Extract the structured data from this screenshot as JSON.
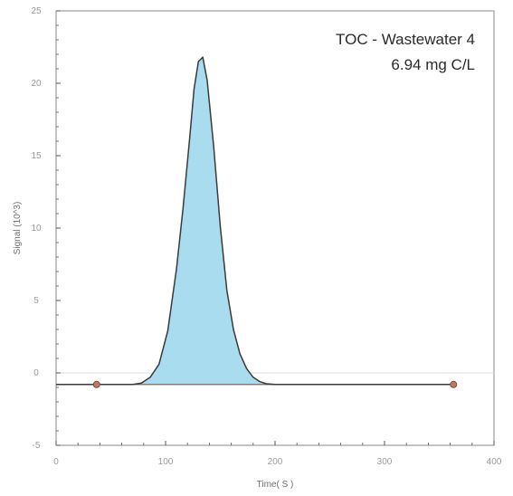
{
  "chart_data": {
    "type": "area",
    "title": "",
    "annotation": {
      "line1": "TOC - Wastewater 4",
      "line2": "6.94 mg C/L"
    },
    "xlabel": "Time( S )",
    "ylabel": "Signal (10^3)",
    "xlim": [
      0,
      400
    ],
    "ylim": [
      -5,
      25
    ],
    "x_ticks": [
      0,
      100,
      200,
      300,
      400
    ],
    "x_tick_labels": [
      "0",
      "100",
      "200",
      "300",
      "400"
    ],
    "y_ticks": [
      -5,
      0,
      5,
      10,
      15,
      20,
      25
    ],
    "y_tick_labels": [
      "-5",
      "0",
      "5",
      "10",
      "15",
      "20",
      "25"
    ],
    "grid": false,
    "reference_line_y": 0,
    "baseline": -0.8,
    "series": [
      {
        "x": [
          0,
          40,
          70,
          78,
          86,
          94,
          102,
          110,
          116,
          122,
          126,
          130,
          134,
          138,
          144,
          150,
          156,
          162,
          168,
          174,
          180,
          186,
          192,
          200,
          260,
          360
        ],
        "y": [
          -0.8,
          -0.8,
          -0.8,
          -0.7,
          -0.3,
          0.6,
          2.9,
          7.2,
          11.4,
          16.2,
          19.6,
          21.5,
          21.8,
          20.2,
          15.6,
          10.1,
          5.7,
          3.0,
          1.3,
          0.3,
          -0.3,
          -0.6,
          -0.75,
          -0.8,
          -0.8,
          -0.8
        ]
      }
    ],
    "integration_area": {
      "x_start": 78,
      "x_end": 200
    },
    "markers": [
      {
        "x": 37,
        "y": -0.8
      },
      {
        "x": 363,
        "y": -0.8
      }
    ],
    "colors": {
      "fill": "#a9dcee",
      "line": "#3a3a3a",
      "baseline": "#7a5a4a",
      "marker_fill": "#c07a5e",
      "marker_stroke": "#7a4a3a",
      "axis": "#555555",
      "reference_line": "#dcdcdc"
    }
  }
}
